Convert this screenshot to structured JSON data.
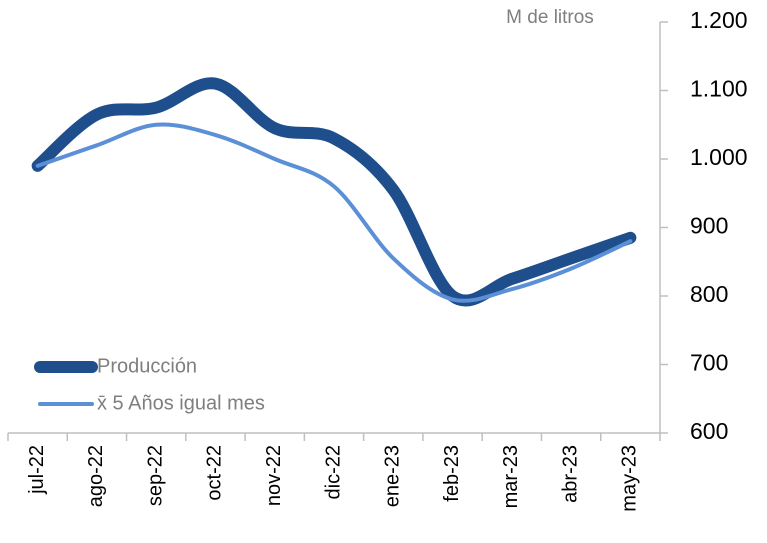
{
  "chart_data": {
    "type": "line",
    "y_axis_label": "M de litros",
    "categories": [
      "jul-22",
      "ago-22",
      "sep-22",
      "oct-22",
      "nov-22",
      "dic-22",
      "ene-23",
      "feb-23",
      "mar-23",
      "abr-23",
      "may-23"
    ],
    "series": [
      {
        "name": "Producción",
        "color": "#1f4e8c",
        "values": [
          990,
          1065,
          1075,
          1110,
          1045,
          1030,
          955,
          800,
          825,
          855,
          885
        ]
      },
      {
        "name": "x̄ 5 Años igual mes",
        "color": "#5b8fd6",
        "values": [
          990,
          1020,
          1050,
          1035,
          1000,
          960,
          855,
          795,
          810,
          840,
          880
        ]
      }
    ],
    "ylim": [
      600,
      1200
    ],
    "yticks": [
      {
        "value": 1200,
        "label": "1.200"
      },
      {
        "value": 1100,
        "label": "1.100"
      },
      {
        "value": 1000,
        "label": "1.000"
      },
      900,
      800,
      700,
      600
    ],
    "y_axis_side": "right",
    "legend": "lower left",
    "grid": false
  }
}
